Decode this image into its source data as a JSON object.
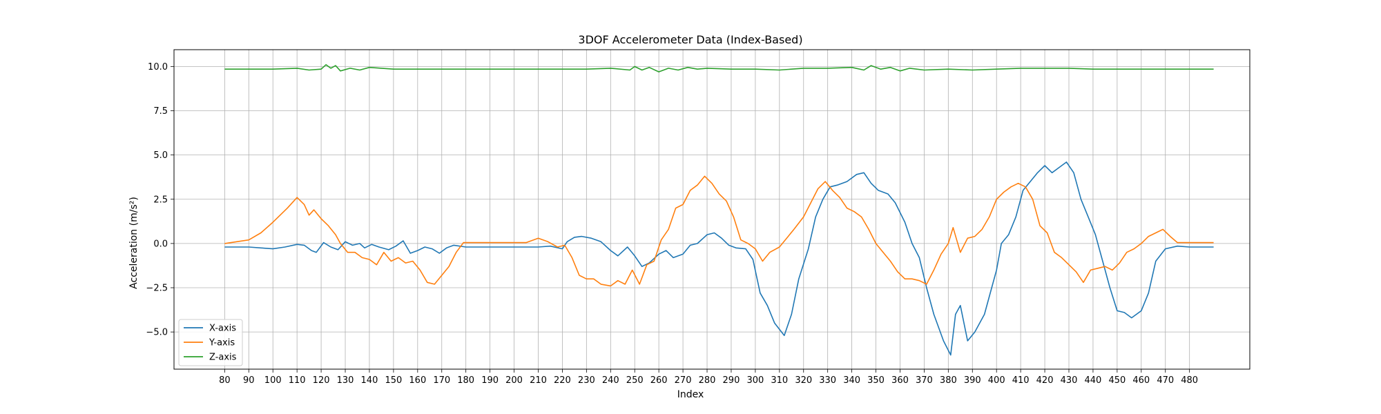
{
  "chart_data": {
    "type": "line",
    "title": "3DOF Accelerometer Data (Index-Based)",
    "xlabel": "Index",
    "ylabel": "Acceleration (m/s²)",
    "xlim": [
      59,
      505
    ],
    "ylim": [
      -7.1,
      10.95
    ],
    "xticks": [
      80,
      90,
      100,
      110,
      120,
      130,
      140,
      150,
      160,
      170,
      180,
      190,
      200,
      210,
      220,
      230,
      240,
      250,
      260,
      270,
      280,
      290,
      300,
      310,
      320,
      330,
      340,
      350,
      360,
      370,
      380,
      390,
      400,
      410,
      420,
      430,
      440,
      450,
      460,
      470,
      480
    ],
    "xtick_labels": [
      "80",
      "90",
      "100",
      "110",
      "120",
      "130",
      "140",
      "150",
      "160",
      "170",
      "180",
      "190",
      "200",
      "210",
      "220",
      "230",
      "240",
      "250",
      "260",
      "270",
      "280",
      "290",
      "300",
      "310",
      "320",
      "330",
      "340",
      "350",
      "360",
      "370",
      "380",
      "390",
      "400",
      "410",
      "420",
      "430",
      "440",
      "450",
      "460",
      "470",
      "480"
    ],
    "yticks": [
      -5.0,
      -2.5,
      0.0,
      2.5,
      5.0,
      7.5,
      10.0
    ],
    "ytick_labels": [
      "−5.0",
      "−2.5",
      "0.0",
      "2.5",
      "5.0",
      "7.5",
      "10.0"
    ],
    "grid": true,
    "legend_position": "lower-left",
    "series": [
      {
        "name": "X-axis",
        "color": "#1f77b4",
        "points": [
          [
            80,
            -0.2
          ],
          [
            90,
            -0.2
          ],
          [
            95,
            -0.25
          ],
          [
            100,
            -0.3
          ],
          [
            105,
            -0.2
          ],
          [
            110,
            -0.05
          ],
          [
            113,
            -0.1
          ],
          [
            116,
            -0.4
          ],
          [
            118,
            -0.5
          ],
          [
            121,
            0.05
          ],
          [
            124,
            -0.2
          ],
          [
            127,
            -0.35
          ],
          [
            130,
            0.1
          ],
          [
            133,
            -0.1
          ],
          [
            136,
            0.0
          ],
          [
            138,
            -0.25
          ],
          [
            141,
            -0.05
          ],
          [
            144,
            -0.2
          ],
          [
            148,
            -0.35
          ],
          [
            151,
            -0.15
          ],
          [
            154,
            0.15
          ],
          [
            157,
            -0.55
          ],
          [
            160,
            -0.4
          ],
          [
            163,
            -0.2
          ],
          [
            166,
            -0.3
          ],
          [
            169,
            -0.55
          ],
          [
            172,
            -0.25
          ],
          [
            175,
            -0.1
          ],
          [
            180,
            -0.2
          ],
          [
            190,
            -0.2
          ],
          [
            200,
            -0.2
          ],
          [
            210,
            -0.2
          ],
          [
            215,
            -0.15
          ],
          [
            220,
            -0.3
          ],
          [
            222,
            0.1
          ],
          [
            225,
            0.35
          ],
          [
            228,
            0.4
          ],
          [
            232,
            0.3
          ],
          [
            236,
            0.1
          ],
          [
            240,
            -0.4
          ],
          [
            243,
            -0.7
          ],
          [
            247,
            -0.2
          ],
          [
            250,
            -0.7
          ],
          [
            253,
            -1.3
          ],
          [
            256,
            -1.1
          ],
          [
            260,
            -0.6
          ],
          [
            263,
            -0.4
          ],
          [
            266,
            -0.8
          ],
          [
            270,
            -0.6
          ],
          [
            273,
            -0.1
          ],
          [
            276,
            0.0
          ],
          [
            280,
            0.5
          ],
          [
            283,
            0.6
          ],
          [
            286,
            0.3
          ],
          [
            289,
            -0.1
          ],
          [
            292,
            -0.25
          ],
          [
            296,
            -0.3
          ],
          [
            299,
            -0.9
          ],
          [
            302,
            -2.8
          ],
          [
            305,
            -3.5
          ],
          [
            308,
            -4.5
          ],
          [
            312,
            -5.2
          ],
          [
            315,
            -4.0
          ],
          [
            318,
            -2.0
          ],
          [
            322,
            -0.3
          ],
          [
            325,
            1.5
          ],
          [
            328,
            2.5
          ],
          [
            331,
            3.2
          ],
          [
            334,
            3.3
          ],
          [
            338,
            3.5
          ],
          [
            342,
            3.9
          ],
          [
            345,
            4.0
          ],
          [
            348,
            3.4
          ],
          [
            351,
            3.0
          ],
          [
            355,
            2.8
          ],
          [
            358,
            2.3
          ],
          [
            362,
            1.2
          ],
          [
            365,
            0.0
          ],
          [
            368,
            -0.8
          ],
          [
            371,
            -2.5
          ],
          [
            374,
            -4.0
          ],
          [
            378,
            -5.5
          ],
          [
            381,
            -6.3
          ],
          [
            383,
            -4.0
          ],
          [
            385,
            -3.5
          ],
          [
            388,
            -5.5
          ],
          [
            391,
            -5.0
          ],
          [
            395,
            -4.0
          ],
          [
            398,
            -2.5
          ],
          [
            400,
            -1.5
          ],
          [
            402,
            0.0
          ],
          [
            405,
            0.5
          ],
          [
            408,
            1.5
          ],
          [
            411,
            3.0
          ],
          [
            414,
            3.5
          ],
          [
            417,
            4.0
          ],
          [
            420,
            4.4
          ],
          [
            423,
            4.0
          ],
          [
            426,
            4.3
          ],
          [
            429,
            4.6
          ],
          [
            432,
            4.0
          ],
          [
            435,
            2.5
          ],
          [
            438,
            1.5
          ],
          [
            441,
            0.5
          ],
          [
            444,
            -1.0
          ],
          [
            447,
            -2.5
          ],
          [
            450,
            -3.8
          ],
          [
            453,
            -3.9
          ],
          [
            456,
            -4.2
          ],
          [
            460,
            -3.8
          ],
          [
            463,
            -2.8
          ],
          [
            466,
            -1.0
          ],
          [
            470,
            -0.3
          ],
          [
            475,
            -0.15
          ],
          [
            480,
            -0.2
          ],
          [
            485,
            -0.2
          ],
          [
            490,
            -0.2
          ]
        ]
      },
      {
        "name": "Y-axis",
        "color": "#ff7f0e",
        "points": [
          [
            80,
            0.0
          ],
          [
            85,
            0.1
          ],
          [
            90,
            0.2
          ],
          [
            95,
            0.6
          ],
          [
            100,
            1.2
          ],
          [
            103,
            1.6
          ],
          [
            106,
            2.0
          ],
          [
            110,
            2.6
          ],
          [
            113,
            2.2
          ],
          [
            115,
            1.6
          ],
          [
            117,
            1.9
          ],
          [
            120,
            1.4
          ],
          [
            123,
            1.0
          ],
          [
            126,
            0.5
          ],
          [
            128,
            0.0
          ],
          [
            131,
            -0.5
          ],
          [
            134,
            -0.5
          ],
          [
            137,
            -0.8
          ],
          [
            140,
            -0.9
          ],
          [
            143,
            -1.2
          ],
          [
            146,
            -0.5
          ],
          [
            149,
            -1.0
          ],
          [
            152,
            -0.8
          ],
          [
            155,
            -1.1
          ],
          [
            158,
            -1.0
          ],
          [
            161,
            -1.5
          ],
          [
            164,
            -2.2
          ],
          [
            167,
            -2.3
          ],
          [
            170,
            -1.8
          ],
          [
            173,
            -1.3
          ],
          [
            176,
            -0.5
          ],
          [
            179,
            0.05
          ],
          [
            185,
            0.05
          ],
          [
            195,
            0.05
          ],
          [
            205,
            0.05
          ],
          [
            210,
            0.3
          ],
          [
            214,
            0.1
          ],
          [
            218,
            -0.2
          ],
          [
            221,
            -0.1
          ],
          [
            224,
            -0.8
          ],
          [
            227,
            -1.8
          ],
          [
            230,
            -2.0
          ],
          [
            233,
            -2.0
          ],
          [
            236,
            -2.3
          ],
          [
            240,
            -2.4
          ],
          [
            243,
            -2.1
          ],
          [
            246,
            -2.3
          ],
          [
            249,
            -1.5
          ],
          [
            252,
            -2.3
          ],
          [
            255,
            -1.2
          ],
          [
            258,
            -1.0
          ],
          [
            261,
            0.2
          ],
          [
            264,
            0.8
          ],
          [
            267,
            2.0
          ],
          [
            270,
            2.2
          ],
          [
            273,
            3.0
          ],
          [
            276,
            3.3
          ],
          [
            279,
            3.8
          ],
          [
            282,
            3.4
          ],
          [
            285,
            2.8
          ],
          [
            288,
            2.4
          ],
          [
            291,
            1.5
          ],
          [
            294,
            0.2
          ],
          [
            297,
            0.0
          ],
          [
            300,
            -0.3
          ],
          [
            303,
            -1.0
          ],
          [
            306,
            -0.5
          ],
          [
            310,
            -0.2
          ],
          [
            313,
            0.3
          ],
          [
            316,
            0.8
          ],
          [
            320,
            1.5
          ],
          [
            323,
            2.3
          ],
          [
            326,
            3.1
          ],
          [
            329,
            3.5
          ],
          [
            332,
            3.0
          ],
          [
            335,
            2.6
          ],
          [
            338,
            2.0
          ],
          [
            341,
            1.8
          ],
          [
            344,
            1.5
          ],
          [
            347,
            0.8
          ],
          [
            350,
            0.0
          ],
          [
            353,
            -0.5
          ],
          [
            356,
            -1.0
          ],
          [
            359,
            -1.6
          ],
          [
            362,
            -2.0
          ],
          [
            365,
            -2.0
          ],
          [
            368,
            -2.1
          ],
          [
            371,
            -2.3
          ],
          [
            374,
            -1.5
          ],
          [
            377,
            -0.6
          ],
          [
            380,
            0.0
          ],
          [
            382,
            0.9
          ],
          [
            385,
            -0.5
          ],
          [
            388,
            0.3
          ],
          [
            391,
            0.4
          ],
          [
            394,
            0.8
          ],
          [
            397,
            1.5
          ],
          [
            400,
            2.5
          ],
          [
            403,
            2.9
          ],
          [
            406,
            3.2
          ],
          [
            409,
            3.4
          ],
          [
            412,
            3.2
          ],
          [
            415,
            2.5
          ],
          [
            418,
            1.0
          ],
          [
            421,
            0.6
          ],
          [
            424,
            -0.5
          ],
          [
            427,
            -0.8
          ],
          [
            430,
            -1.2
          ],
          [
            433,
            -1.6
          ],
          [
            436,
            -2.2
          ],
          [
            439,
            -1.5
          ],
          [
            442,
            -1.4
          ],
          [
            445,
            -1.3
          ],
          [
            448,
            -1.5
          ],
          [
            451,
            -1.1
          ],
          [
            454,
            -0.5
          ],
          [
            457,
            -0.3
          ],
          [
            460,
            0.0
          ],
          [
            463,
            0.4
          ],
          [
            466,
            0.6
          ],
          [
            469,
            0.8
          ],
          [
            472,
            0.4
          ],
          [
            475,
            0.05
          ],
          [
            480,
            0.05
          ],
          [
            485,
            0.05
          ],
          [
            490,
            0.05
          ]
        ]
      },
      {
        "name": "Z-axis",
        "color": "#2ca02c",
        "points": [
          [
            80,
            9.85
          ],
          [
            90,
            9.85
          ],
          [
            100,
            9.85
          ],
          [
            110,
            9.9
          ],
          [
            115,
            9.8
          ],
          [
            120,
            9.85
          ],
          [
            122,
            10.1
          ],
          [
            124,
            9.9
          ],
          [
            126,
            10.05
          ],
          [
            128,
            9.75
          ],
          [
            132,
            9.9
          ],
          [
            136,
            9.8
          ],
          [
            140,
            9.95
          ],
          [
            150,
            9.85
          ],
          [
            160,
            9.85
          ],
          [
            170,
            9.85
          ],
          [
            180,
            9.85
          ],
          [
            190,
            9.85
          ],
          [
            200,
            9.85
          ],
          [
            210,
            9.85
          ],
          [
            220,
            9.85
          ],
          [
            230,
            9.85
          ],
          [
            240,
            9.9
          ],
          [
            248,
            9.8
          ],
          [
            250,
            10.0
          ],
          [
            253,
            9.8
          ],
          [
            256,
            9.95
          ],
          [
            260,
            9.7
          ],
          [
            264,
            9.9
          ],
          [
            268,
            9.8
          ],
          [
            272,
            9.95
          ],
          [
            276,
            9.85
          ],
          [
            280,
            9.9
          ],
          [
            290,
            9.85
          ],
          [
            300,
            9.85
          ],
          [
            310,
            9.8
          ],
          [
            320,
            9.9
          ],
          [
            330,
            9.9
          ],
          [
            340,
            9.95
          ],
          [
            345,
            9.8
          ],
          [
            348,
            10.05
          ],
          [
            352,
            9.85
          ],
          [
            356,
            9.95
          ],
          [
            360,
            9.75
          ],
          [
            364,
            9.9
          ],
          [
            370,
            9.8
          ],
          [
            380,
            9.85
          ],
          [
            390,
            9.8
          ],
          [
            400,
            9.85
          ],
          [
            410,
            9.9
          ],
          [
            420,
            9.9
          ],
          [
            430,
            9.9
          ],
          [
            440,
            9.85
          ],
          [
            450,
            9.85
          ],
          [
            460,
            9.85
          ],
          [
            470,
            9.85
          ],
          [
            480,
            9.85
          ],
          [
            490,
            9.85
          ]
        ]
      }
    ]
  }
}
